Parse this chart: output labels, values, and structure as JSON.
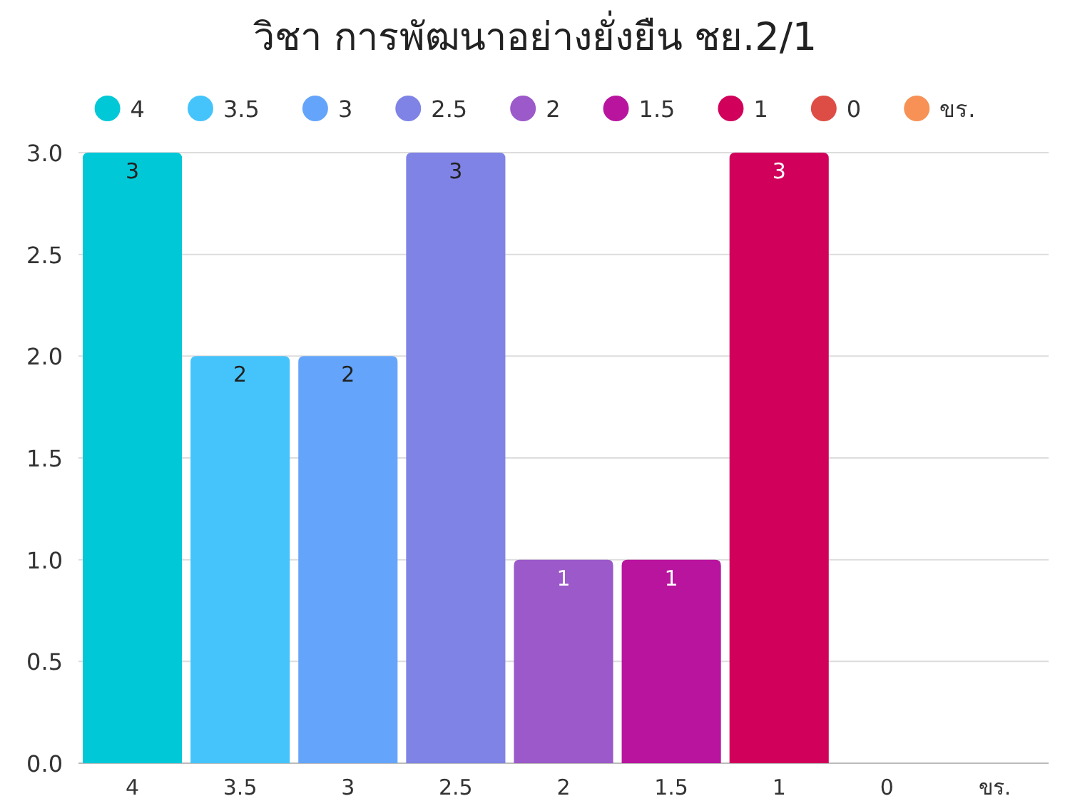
{
  "chart_data": {
    "type": "bar",
    "title": "วิชา การพัฒนาอย่างยั่งยืน ชย.2/1",
    "categories": [
      "4",
      "3.5",
      "3",
      "2.5",
      "2",
      "1.5",
      "1",
      "0",
      "ขร."
    ],
    "series": [
      {
        "name": "4",
        "color": "#00c8d7",
        "values": [
          3,
          null,
          null,
          null,
          null,
          null,
          null,
          null,
          null
        ],
        "value_labels": [
          "3",
          null,
          null,
          null,
          null,
          null,
          null,
          null,
          null
        ]
      },
      {
        "name": "3.5",
        "color": "#45c4fb",
        "values": [
          null,
          2,
          null,
          null,
          null,
          null,
          null,
          null,
          null
        ],
        "value_labels": [
          null,
          "2",
          null,
          null,
          null,
          null,
          null,
          null,
          null
        ]
      },
      {
        "name": "3",
        "color": "#64a5fb",
        "values": [
          null,
          null,
          2,
          null,
          null,
          null,
          null,
          null,
          null
        ],
        "value_labels": [
          null,
          null,
          "2",
          null,
          null,
          null,
          null,
          null,
          null
        ]
      },
      {
        "name": "2.5",
        "color": "#7f83e6",
        "values": [
          null,
          null,
          null,
          3,
          null,
          null,
          null,
          null,
          null
        ],
        "value_labels": [
          null,
          null,
          null,
          "3",
          null,
          null,
          null,
          null,
          null
        ]
      },
      {
        "name": "2",
        "color": "#9b59c9",
        "values": [
          null,
          null,
          null,
          null,
          1,
          null,
          null,
          null,
          null
        ],
        "value_labels": [
          null,
          null,
          null,
          null,
          "1",
          null,
          null,
          null,
          null
        ]
      },
      {
        "name": "1.5",
        "color": "#b8149e",
        "values": [
          null,
          null,
          null,
          null,
          null,
          1,
          null,
          null,
          null
        ],
        "value_labels": [
          null,
          null,
          null,
          null,
          null,
          "1",
          null,
          null,
          null
        ]
      },
      {
        "name": "1",
        "color": "#d1005b",
        "values": [
          null,
          null,
          null,
          null,
          null,
          null,
          3,
          null,
          null
        ],
        "value_labels": [
          null,
          null,
          null,
          null,
          null,
          null,
          "3",
          null,
          null
        ]
      },
      {
        "name": "0",
        "color": "#de4d45",
        "values": [
          null,
          null,
          null,
          null,
          null,
          null,
          null,
          0,
          null
        ]
      },
      {
        "name": "ขร.",
        "color": "#f79155",
        "values": [
          null,
          null,
          null,
          null,
          null,
          null,
          null,
          null,
          0
        ]
      }
    ],
    "ylim": [
      0,
      3
    ],
    "yticks": [
      "0.0",
      "0.5",
      "1.0",
      "1.5",
      "2.0",
      "2.5",
      "3.0"
    ],
    "grid": "y",
    "legend": "top"
  }
}
